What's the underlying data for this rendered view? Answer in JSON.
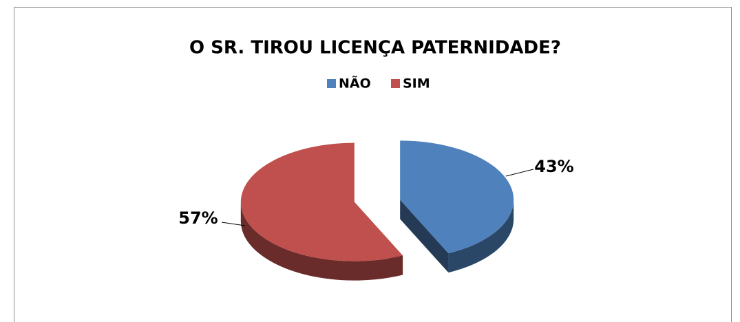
{
  "chart_data": {
    "type": "pie",
    "title": "O SR. TIROU LICENÇA PATERNIDADE?",
    "categories": [
      "NÃO",
      "SIM"
    ],
    "values": [
      43,
      57
    ],
    "value_labels": [
      "43%",
      "57%"
    ],
    "colors": [
      "#4f81bd",
      "#c0504d"
    ],
    "legend": "top"
  }
}
